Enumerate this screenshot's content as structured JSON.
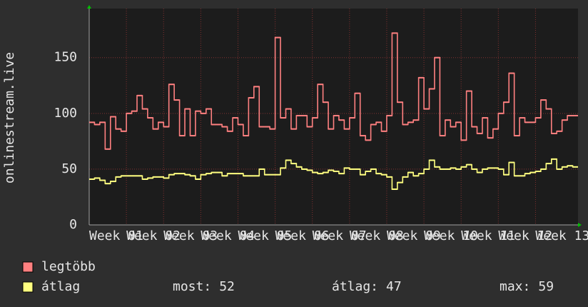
{
  "chart_data": {
    "type": "step",
    "ylabel": "onlinestream.live",
    "ylim": [
      0,
      194
    ],
    "yticks": [
      0,
      50,
      100,
      150
    ],
    "xlim": [
      0,
      92
    ],
    "xticks": [
      {
        "value": 0,
        "label": "Week 01"
      },
      {
        "value": 7,
        "label": "Week 02"
      },
      {
        "value": 14,
        "label": "Week 03"
      },
      {
        "value": 21,
        "label": "Week 04"
      },
      {
        "value": 28,
        "label": "Week 05"
      },
      {
        "value": 35,
        "label": "Week 06"
      },
      {
        "value": 42,
        "label": "Week 07"
      },
      {
        "value": 49,
        "label": "Week 08"
      },
      {
        "value": 56,
        "label": "Week 09"
      },
      {
        "value": 63,
        "label": "Week 10"
      },
      {
        "value": 70,
        "label": "Week 11"
      },
      {
        "value": 77,
        "label": "Week 12"
      },
      {
        "value": 84,
        "label": "Week 13"
      }
    ],
    "grid": true,
    "series": [
      {
        "name": "legtöbb",
        "color": "#ff8080",
        "values": [
          92,
          90,
          92,
          68,
          97,
          86,
          84,
          100,
          102,
          116,
          104,
          96,
          86,
          92,
          88,
          126,
          112,
          80,
          104,
          80,
          102,
          100,
          104,
          90,
          90,
          88,
          84,
          96,
          90,
          80,
          114,
          124,
          88,
          88,
          86,
          168,
          96,
          104,
          86,
          98,
          98,
          88,
          96,
          126,
          110,
          86,
          98,
          94,
          86,
          96,
          118,
          80,
          76,
          90,
          92,
          84,
          98,
          172,
          110,
          90,
          92,
          94,
          132,
          104,
          122,
          150,
          80,
          94,
          88,
          92,
          76,
          120,
          88,
          82,
          96,
          78,
          86,
          100,
          110,
          136,
          80,
          96,
          92,
          92,
          96,
          112,
          104,
          82,
          84,
          94,
          98,
          98
        ]
      },
      {
        "name": "átlag",
        "color": "#ffff80",
        "values": [
          41,
          42,
          40,
          37,
          39,
          43,
          44,
          44,
          44,
          44,
          41,
          42,
          43,
          43,
          42,
          45,
          46,
          46,
          45,
          44,
          41,
          45,
          46,
          47,
          47,
          44,
          46,
          46,
          46,
          44,
          44,
          44,
          50,
          45,
          45,
          45,
          51,
          58,
          55,
          52,
          50,
          49,
          47,
          46,
          47,
          49,
          48,
          46,
          51,
          50,
          50,
          45,
          48,
          50,
          46,
          45,
          43,
          32,
          38,
          43,
          47,
          44,
          46,
          50,
          58,
          52,
          50,
          50,
          51,
          50,
          52,
          54,
          50,
          47,
          50,
          51,
          51,
          50,
          45,
          56,
          44,
          44,
          46,
          47,
          48,
          50,
          55,
          59,
          50,
          52,
          53,
          52
        ]
      }
    ],
    "stats": [
      {
        "label": "most:",
        "value": 52
      },
      {
        "label": "átlag:",
        "value": 47
      },
      {
        "label": "max:",
        "value": 59
      }
    ]
  }
}
